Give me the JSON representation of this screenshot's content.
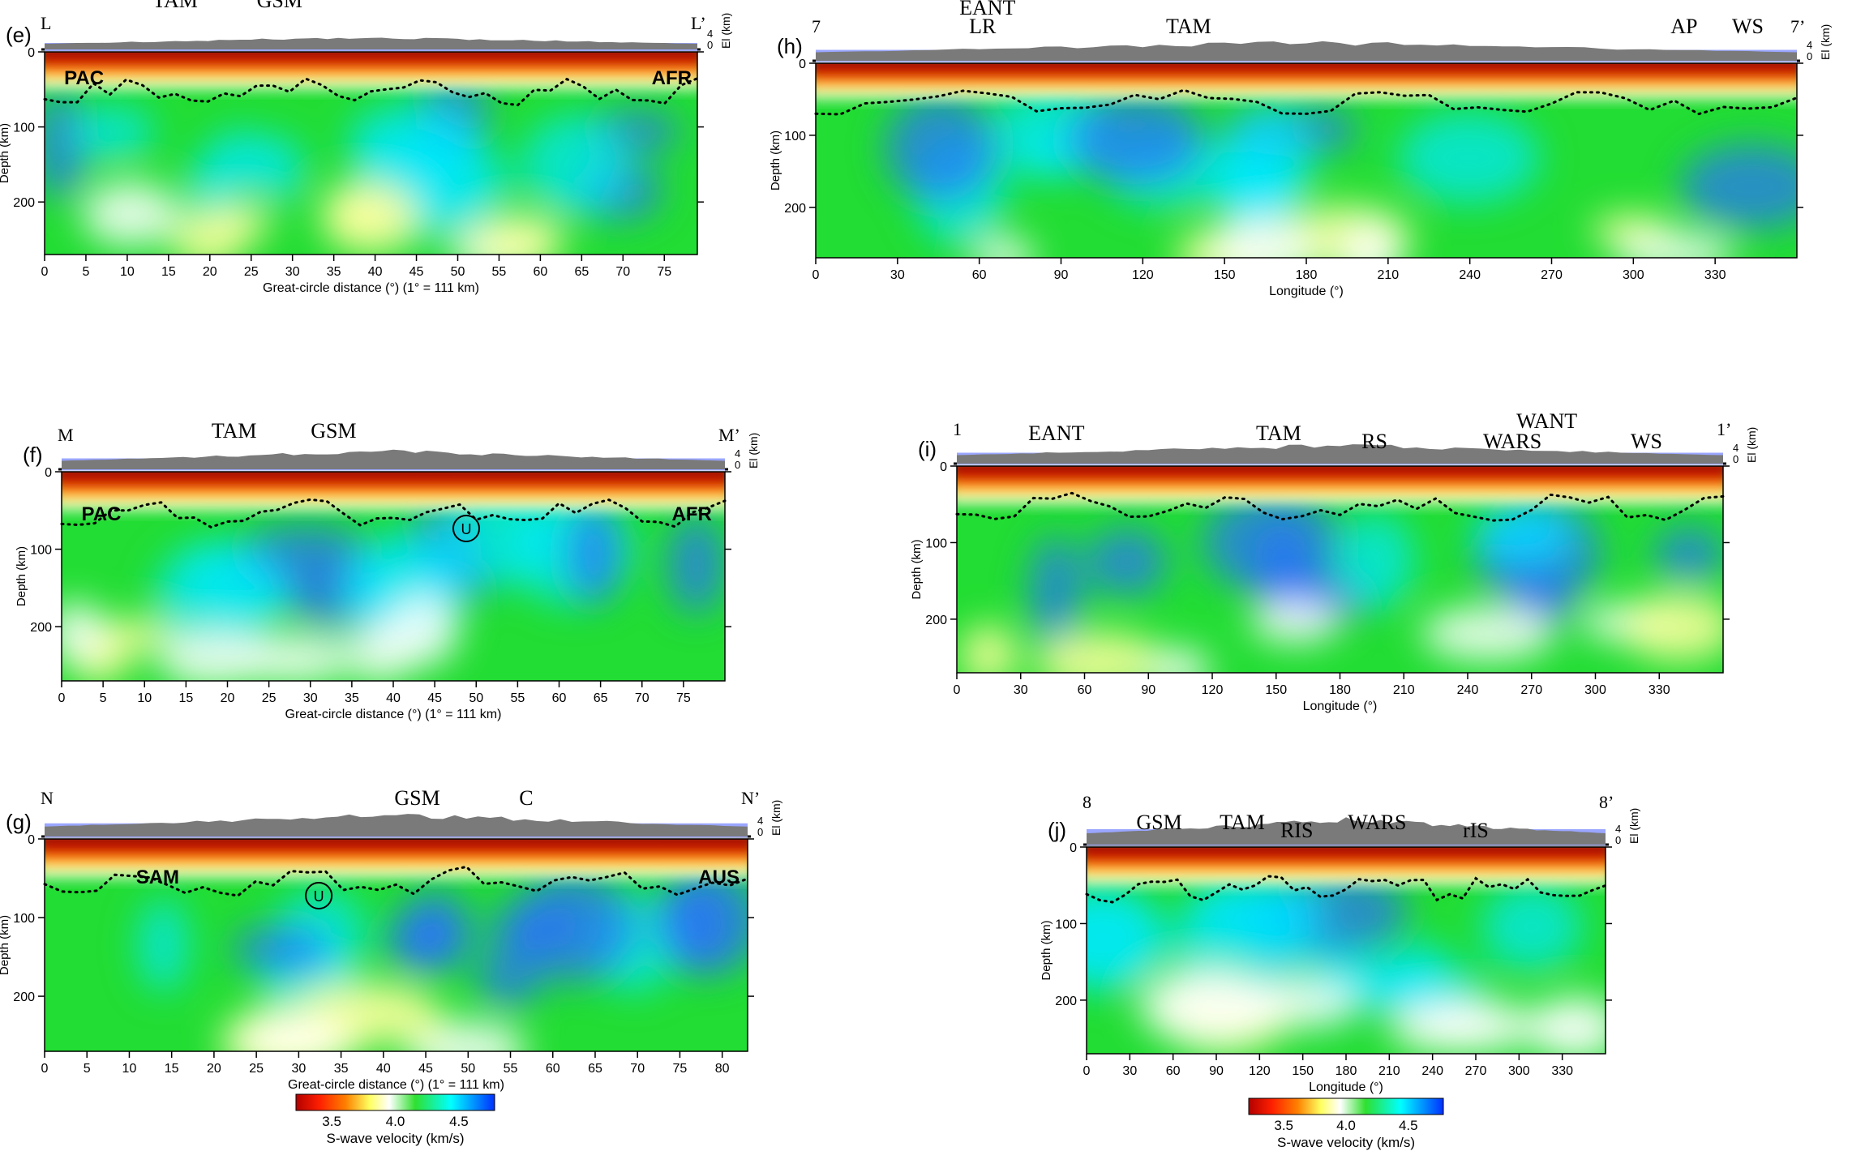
{
  "colors": {
    "sea": "#9aa6ff",
    "topo": "#7a7a7a",
    "scale": [
      "#b30000",
      "#ff2000",
      "#ff8000",
      "#ffff80",
      "#ffffff",
      "#20e020",
      "#00ffff",
      "#0030ff"
    ]
  },
  "panels": [
    {
      "id": "e",
      "label": "(e)",
      "start": "L",
      "end": "L’",
      "xlabel": "Great-circle distance (°) (1° = 111 km)",
      "xticks": [
        "0",
        "5",
        "10",
        "15",
        "20",
        "25",
        "30",
        "35",
        "40",
        "45",
        "50",
        "55",
        "60",
        "65",
        "70",
        "75"
      ],
      "ylabel": "Depth (km)",
      "yticks": [
        "0",
        "100",
        "200"
      ],
      "elev_label": "El (km)",
      "elev_ticks": [
        "0",
        "4"
      ],
      "regions": [
        "TAM",
        "GSM"
      ],
      "plates": [
        "PAC",
        "AFR"
      ]
    },
    {
      "id": "h",
      "label": "(h)",
      "start": "7",
      "end": "7’",
      "xlabel": "Longitude (°)",
      "xticks": [
        "0",
        "30",
        "60",
        "90",
        "120",
        "150",
        "180",
        "210",
        "240",
        "270",
        "300",
        "330"
      ],
      "ylabel": "Depth (km)",
      "yticks": [
        "0",
        "100",
        "200"
      ],
      "elev_label": "El (km)",
      "elev_ticks": [
        "0",
        "4"
      ],
      "regions": [
        "EANT",
        "LR",
        "TAM",
        "AP",
        "WS"
      ],
      "plates": []
    },
    {
      "id": "f",
      "label": "(f)",
      "start": "M",
      "end": "M’",
      "xlabel": "Great-circle distance (°) (1° = 111 km)",
      "xticks": [
        "0",
        "5",
        "10",
        "15",
        "20",
        "25",
        "30",
        "35",
        "40",
        "45",
        "50",
        "55",
        "60",
        "65",
        "70",
        "75"
      ],
      "ylabel": "Depth (km)",
      "yticks": [
        "0",
        "100",
        "200"
      ],
      "elev_label": "El (km)",
      "elev_ticks": [
        "0",
        "4"
      ],
      "regions": [
        "TAM",
        "GSM"
      ],
      "plates": [
        "PAC",
        "AFR"
      ],
      "marker": "U"
    },
    {
      "id": "i",
      "label": "(i)",
      "start": "1",
      "end": "1’",
      "xlabel": "Longitude (°)",
      "xticks": [
        "0",
        "30",
        "60",
        "90",
        "120",
        "150",
        "180",
        "210",
        "240",
        "270",
        "300",
        "330"
      ],
      "ylabel": "Depth (km)",
      "yticks": [
        "0",
        "100",
        "200"
      ],
      "elev_label": "El (km)",
      "elev_ticks": [
        "0",
        "4"
      ],
      "regions": [
        "EANT",
        "TAM",
        "RS",
        "WANT",
        "WARS",
        "WS"
      ],
      "plates": []
    },
    {
      "id": "g",
      "label": "(g)",
      "start": "N",
      "end": "N’",
      "xlabel": "Great-circle distance (°) (1° = 111 km)",
      "xticks": [
        "0",
        "5",
        "10",
        "15",
        "20",
        "25",
        "30",
        "35",
        "40",
        "45",
        "50",
        "55",
        "60",
        "65",
        "70",
        "75",
        "80"
      ],
      "ylabel": "Depth (km)",
      "yticks": [
        "0",
        "100",
        "200"
      ],
      "elev_label": "El (km)",
      "elev_ticks": [
        "0",
        "4"
      ],
      "regions": [
        "GSM",
        "C"
      ],
      "plates": [
        "SAM",
        "AUS"
      ],
      "marker": "U"
    },
    {
      "id": "j",
      "label": "(j)",
      "start": "8",
      "end": "8’",
      "xlabel": "Longitude (°)",
      "xticks": [
        "0",
        "30",
        "60",
        "90",
        "120",
        "150",
        "180",
        "210",
        "240",
        "270",
        "300",
        "330"
      ],
      "ylabel": "Depth (km)",
      "yticks": [
        "0",
        "100",
        "200"
      ],
      "elev_label": "El (km)",
      "elev_ticks": [
        "0",
        "4"
      ],
      "regions": [
        "GSM",
        "TAM",
        "RIS",
        "WARS",
        "rIS"
      ],
      "plates": []
    }
  ],
  "colorbars": [
    {
      "ticks": [
        "3.5",
        "4.0",
        "4.5"
      ],
      "label": "S-wave velocity (km/s)"
    },
    {
      "ticks": [
        "3.5",
        "4.0",
        "4.5"
      ],
      "label": "S-wave velocity (km/s)"
    }
  ]
}
